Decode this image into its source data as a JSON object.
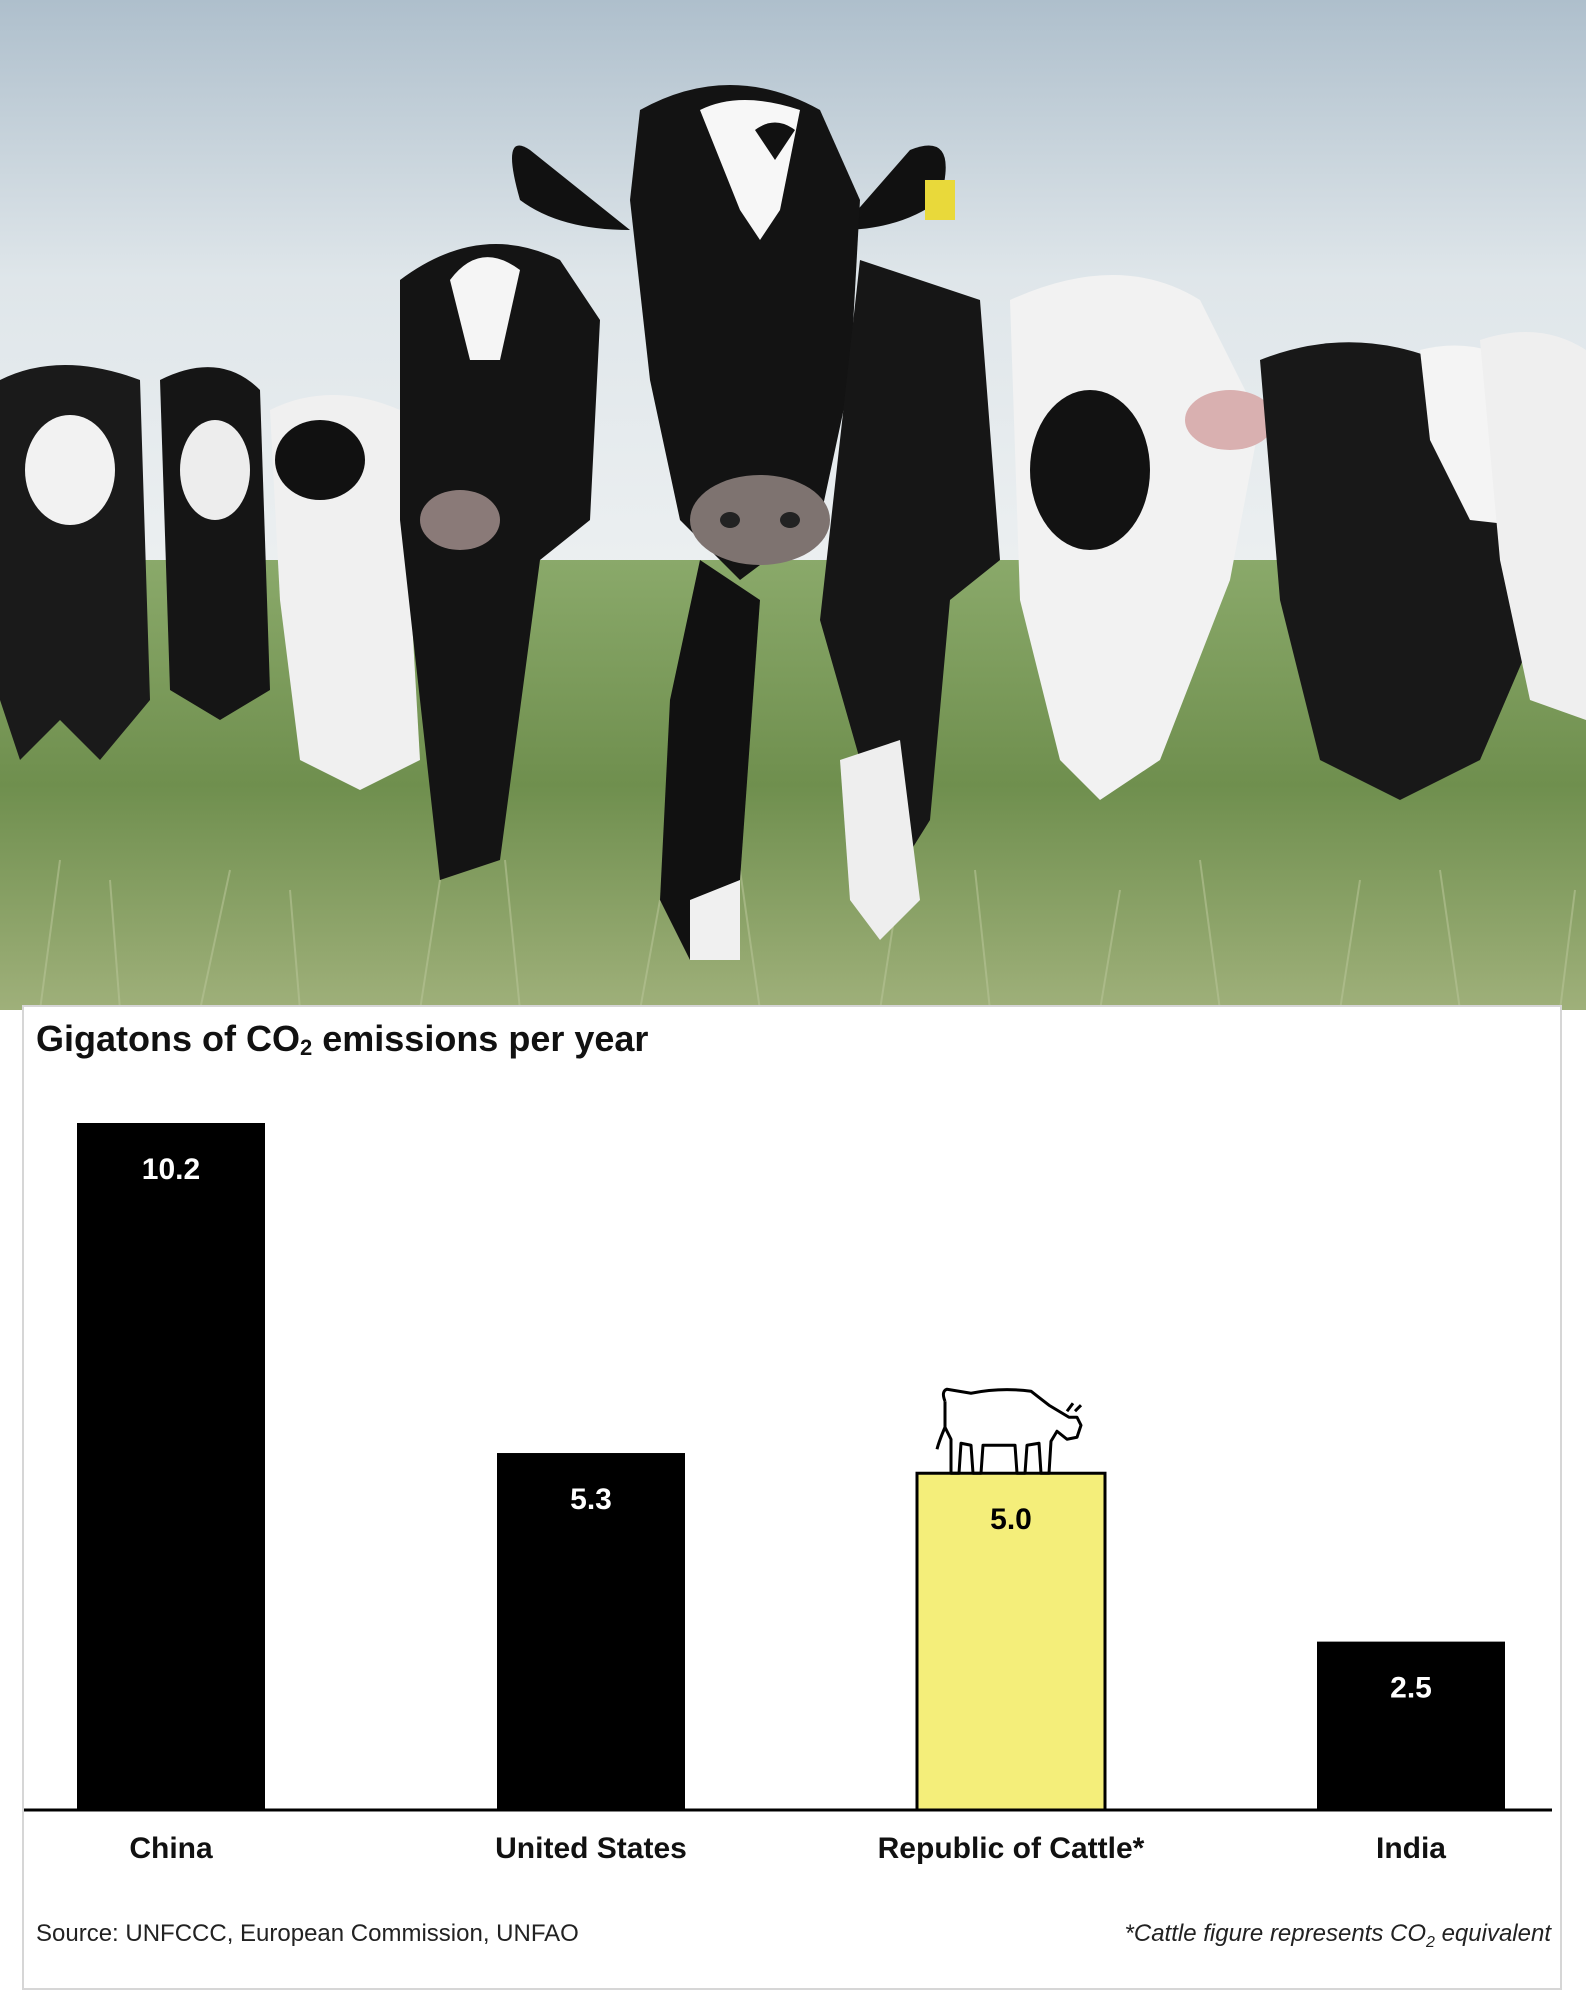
{
  "chart_data": {
    "type": "bar",
    "title_prefix": "Gigatons of CO",
    "title_sub": "2",
    "title_suffix": " emissions per year",
    "categories": [
      "China",
      "United States",
      "Republic of Cattle*",
      "India"
    ],
    "values": [
      10.2,
      5.3,
      5.0,
      2.5
    ],
    "value_labels": [
      "10.2",
      "5.3",
      "5.0",
      "2.5"
    ],
    "bar_colors": [
      "#000000",
      "#000000",
      "#f4ee7a",
      "#000000"
    ],
    "label_colors": [
      "#ffffff",
      "#ffffff",
      "#000000",
      "#ffffff"
    ],
    "ylim": [
      0,
      10.2
    ],
    "highlight_icon": "cow-icon",
    "highlight_index": 2
  },
  "photo": {
    "icon": "cattle-herd-photo"
  },
  "footer": {
    "source": "Source: UNFCCC, European Commission, UNFAO",
    "note_prefix": "*Cattle figure represents CO",
    "note_sub": "2",
    "note_suffix": " equivalent"
  }
}
